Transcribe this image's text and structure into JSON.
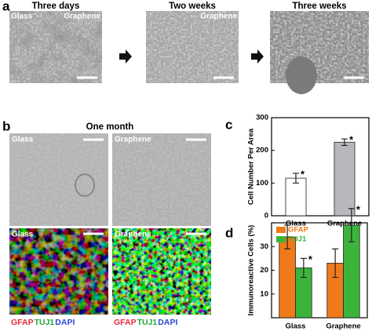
{
  "panels": {
    "a": {
      "label": "a",
      "images": [
        {
          "title": "Three days",
          "labels": [
            "Glass",
            "Graphene"
          ]
        },
        {
          "title": "Two weeks",
          "labels": [
            "Graphene"
          ]
        },
        {
          "title": "Three weeks",
          "labels": []
        }
      ]
    },
    "b": {
      "label": "b",
      "title": "One month",
      "images": [
        {
          "labels": [
            "Glass"
          ]
        },
        {
          "labels": [
            "Graphene"
          ]
        },
        {
          "labels": [
            "Glass"
          ]
        },
        {
          "labels": [
            "Graphene"
          ]
        }
      ],
      "stains": [
        {
          "text": "GFAP",
          "color": "#e8283c"
        },
        {
          "text": "TUJ1",
          "color": "#22a83a"
        },
        {
          "text": "DAPI",
          "color": "#2848d8"
        }
      ]
    },
    "c": {
      "label": "c"
    },
    "d": {
      "label": "d"
    }
  },
  "chart_data": [
    {
      "type": "bar",
      "y_label": "Cell Number Per Area",
      "categories": [
        "Glass",
        "Graphene"
      ],
      "values": [
        115,
        225
      ],
      "errors": [
        15,
        10
      ],
      "significance": [
        "*",
        "*"
      ],
      "colors": [
        "#ffffff",
        "#b8b8bc"
      ],
      "ylim": [
        0,
        300
      ],
      "yticks": [
        0,
        100,
        200,
        300
      ]
    },
    {
      "type": "grouped_bar",
      "y_label": "Immunoreactive Cells (%)",
      "categories": [
        "Glass",
        "Graphene"
      ],
      "series": [
        {
          "name": "GFAP",
          "color": "#f07a1a",
          "values": [
            34,
            23
          ],
          "errors": [
            5,
            6
          ],
          "significance": [
            null,
            null
          ]
        },
        {
          "name": "TUJ1",
          "color": "#3cb43c",
          "values": [
            21,
            39
          ],
          "errors": [
            4,
            7
          ],
          "significance": [
            "*",
            "*"
          ]
        }
      ],
      "ylim": [
        0,
        40
      ],
      "yticks": [
        10,
        20,
        30
      ]
    }
  ]
}
